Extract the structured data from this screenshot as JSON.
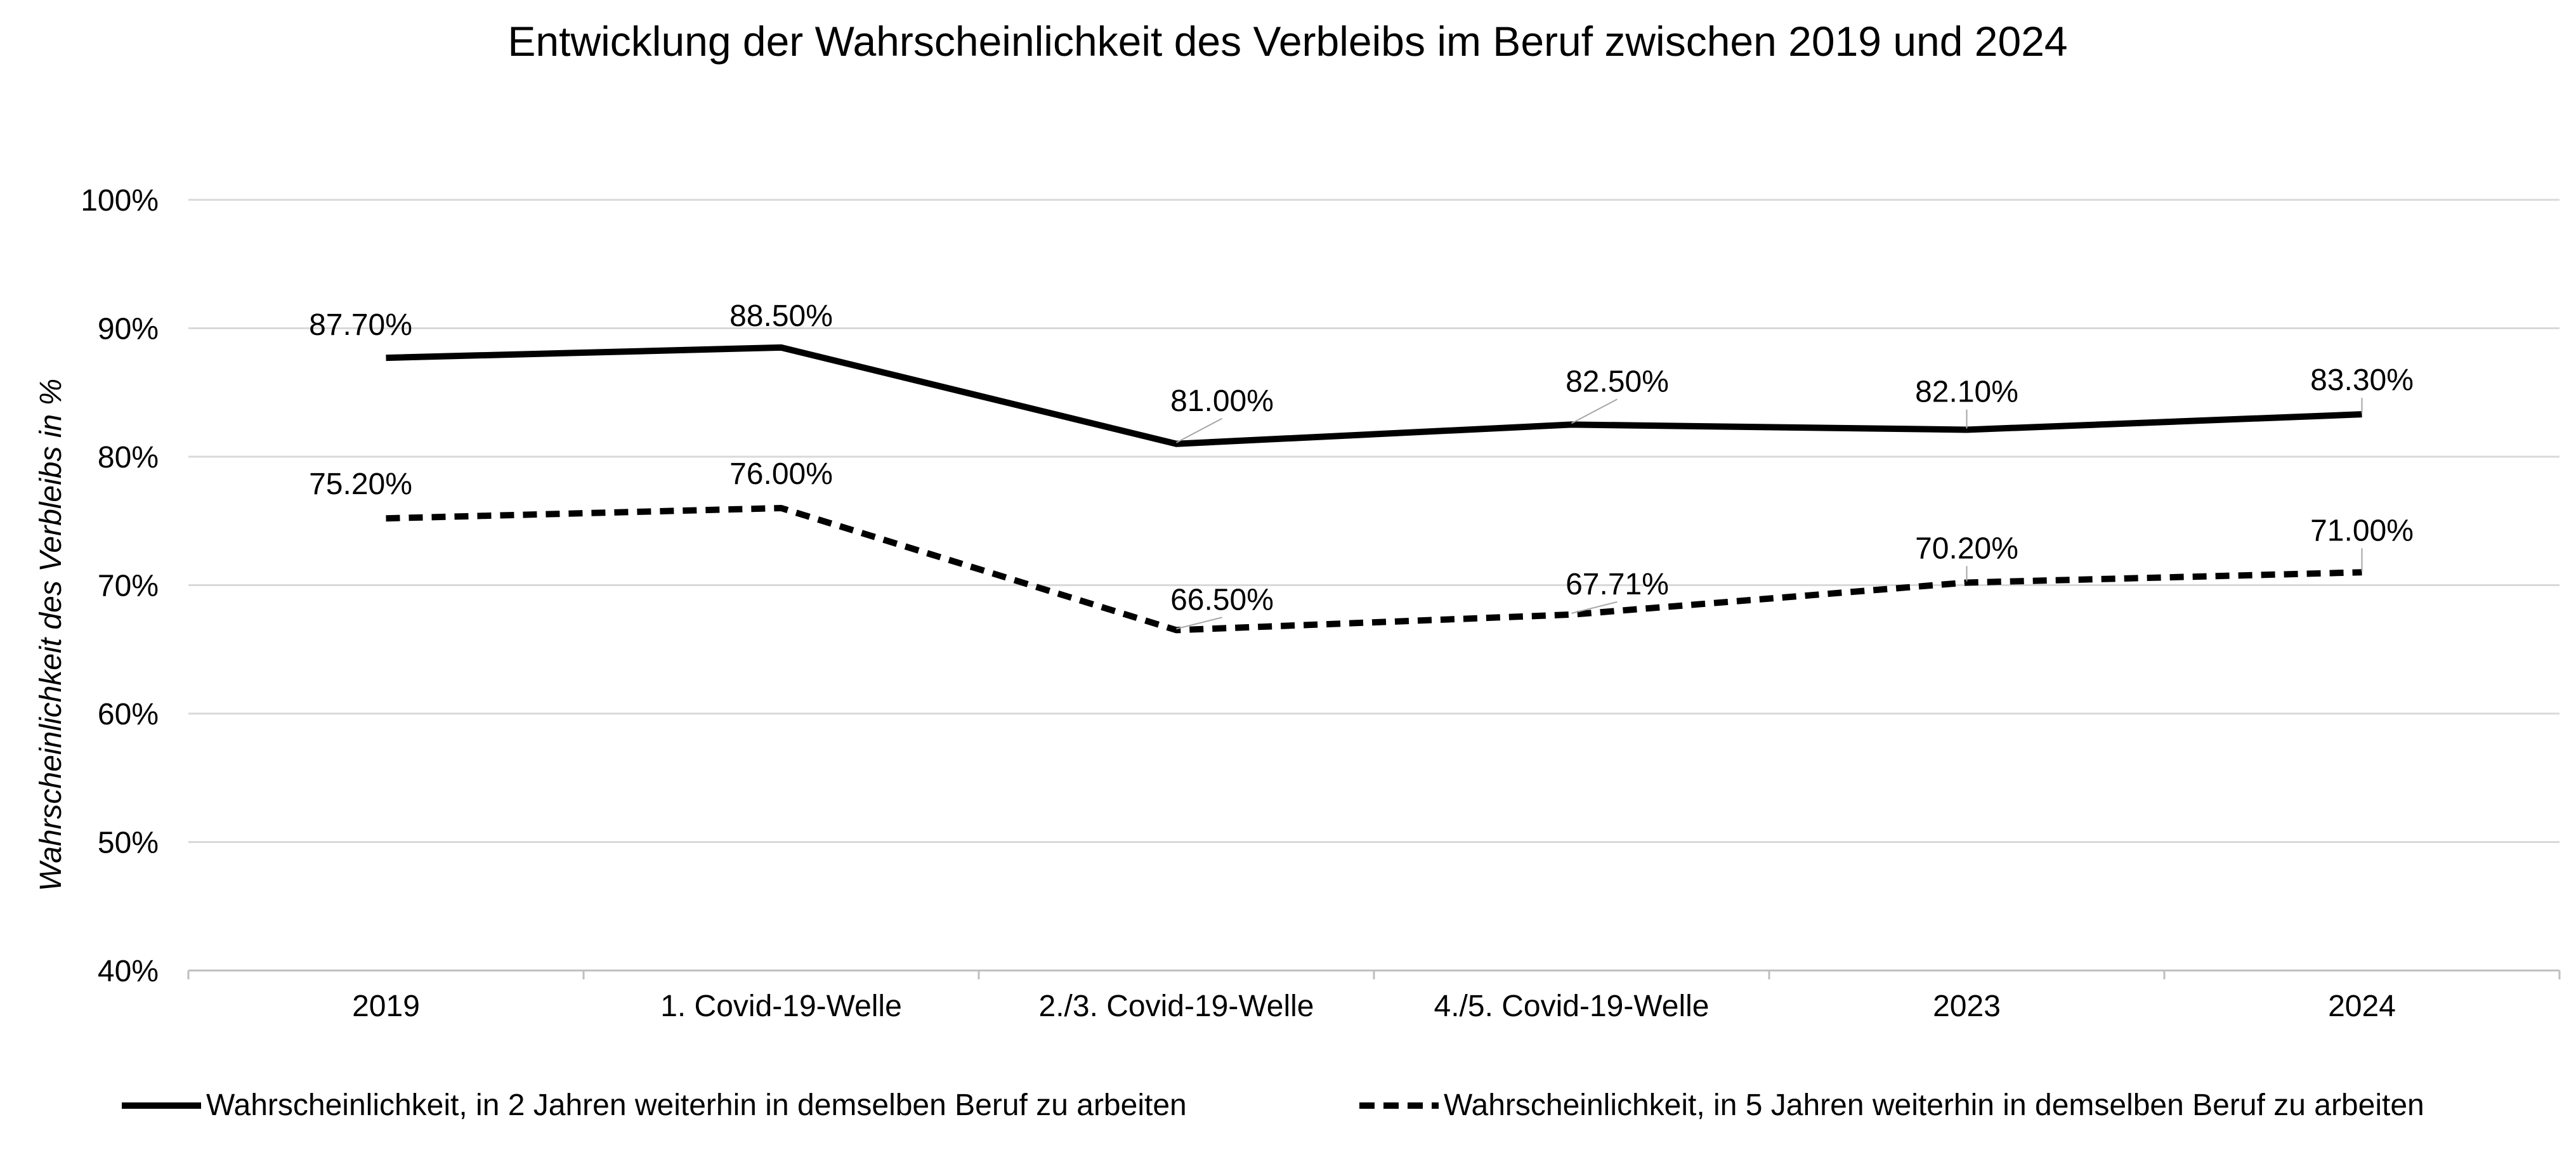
{
  "chart_data": {
    "type": "line",
    "title": "Entwicklung der Wahrscheinlichkeit des Verbleibs im Beruf zwischen 2019 und 2024",
    "xlabel": "",
    "ylabel": "Wahrscheinlichkeit des Verbleibs in %",
    "ylim": [
      40,
      100
    ],
    "yticks": [
      40,
      50,
      60,
      70,
      80,
      90,
      100
    ],
    "ytick_labels": [
      "40%",
      "50%",
      "60%",
      "70%",
      "80%",
      "90%",
      "100%"
    ],
    "grid": true,
    "legend_position": "bottom",
    "categories": [
      "2019",
      "1. Covid-19-Welle",
      "2./3. Covid-19-Welle",
      "4./5. Covid-19-Welle",
      "2023",
      "2024"
    ],
    "series": [
      {
        "name": "Wahrscheinlichkeit, in 2 Jahren weiterhin in demselben Beruf zu arbeiten",
        "style": "solid",
        "values": [
          87.7,
          88.5,
          81.0,
          82.5,
          82.1,
          83.3
        ],
        "labels": [
          "87.70%",
          "88.50%",
          "81.00%",
          "82.50%",
          "82.10%",
          "83.30%"
        ]
      },
      {
        "name": "Wahrscheinlichkeit, in 5 Jahren weiterhin in demselben Beruf zu arbeiten",
        "style": "dashed",
        "values": [
          75.2,
          76.0,
          66.5,
          67.71,
          70.2,
          71.0
        ],
        "labels": [
          "75.20%",
          "76.00%",
          "66.50%",
          "67.71%",
          "70.20%",
          "71.00%"
        ]
      }
    ],
    "colors": {
      "line": "#000000",
      "grid": "#d9d9d9",
      "axis": "#bfbfbf",
      "leader": "#a6a6a6"
    }
  }
}
